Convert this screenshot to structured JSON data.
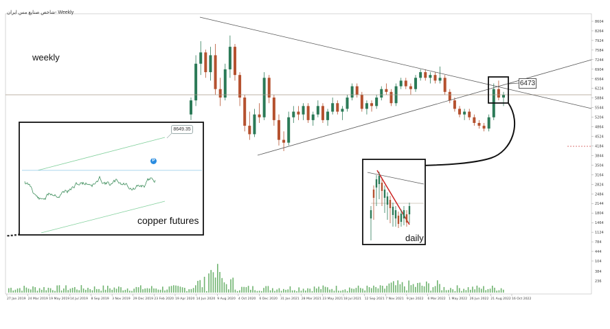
{
  "chart_window": {
    "title": "شاخص صنایع مس ایران- Weekly"
  },
  "annotations": {
    "weekly_label": "weekly",
    "copper_label": "copper futures",
    "daily_label": "daily",
    "level_callout": "6473",
    "inset_level_callout": "8649.35",
    "inset_marker": "P"
  },
  "colors": {
    "up_candle": "#2b7a57",
    "down_candle": "#b5512f",
    "volume": "#6fb36f",
    "trendline": "#555555",
    "horizontal_level": "#a89a86",
    "inset_channel": "#7fcf9a",
    "inset_level": "#8fc7e8",
    "daily_downtrend": "#cc2222",
    "dashed_level": "#cc4444"
  },
  "chart_data": {
    "type": "candlestick",
    "title": "شاخص صنایع مس ایران- Weekly",
    "y_ticks": [
      "8604",
      "8264",
      "7924",
      "7584",
      "7244",
      "6904",
      "6564",
      "6224",
      "5884",
      "5544",
      "5204",
      "4864",
      "4524",
      "4184",
      "3844",
      "3504",
      "3164",
      "2824",
      "2484",
      "2144",
      "1804",
      "1464",
      "1124",
      "784",
      "444",
      "104"
    ],
    "ylim": [
      104,
      8604
    ],
    "volume_ticks": [
      "384",
      "236"
    ],
    "x_ticks": [
      "27 Jan 2019",
      "24 Mar 2019",
      "19 May 2019",
      "14 Jul 2019",
      "8 Sep 2019",
      "3 Nov 2019",
      "29 Dec 2019",
      "23 Feb 2020",
      "19 Apr 2020",
      "14 Jun 2020",
      "9 Aug 2020",
      "4 Oct 2020",
      "6 Dec 2020",
      "31 Jan 2021",
      "28 Mar 2021",
      "23 May 2021",
      "18 Jul 2021",
      "12 Sep 2021",
      "7 Nov 2021",
      "9 Jan 2022",
      "6 Mar 2022",
      "1 May 2022",
      "26 Jun 2022",
      "21 Aug 2022",
      "16 Oct 2022"
    ],
    "horizontal_level": 6224,
    "dashed_level": 4864,
    "callout_level": 6473,
    "early_series": [
      1000,
      1010,
      1025,
      1040,
      1050,
      1068,
      1080,
      1095,
      1110,
      1120,
      1140,
      1155,
      1170,
      1185,
      1200,
      1215,
      1235,
      1250,
      1265,
      1280,
      1300,
      1320,
      1340,
      1360,
      1380,
      1400,
      1420,
      1440,
      1470,
      1500,
      1530,
      1560,
      1590,
      1620,
      1650,
      1680,
      1720,
      1760
    ],
    "candles": [
      [
        5300,
        5900,
        5100,
        5800
      ],
      [
        5800,
        7400,
        5600,
        7100
      ],
      [
        7100,
        7900,
        6700,
        7500
      ],
      [
        7500,
        7600,
        6600,
        6800
      ],
      [
        6800,
        7700,
        6500,
        7400
      ],
      [
        7400,
        7800,
        6000,
        6200
      ],
      [
        6200,
        6600,
        5600,
        5900
      ],
      [
        5900,
        7100,
        5800,
        6900
      ],
      [
        6900,
        8100,
        6600,
        7700
      ],
      [
        7700,
        7800,
        6500,
        6700
      ],
      [
        6700,
        6800,
        5600,
        5900
      ],
      [
        5900,
        6000,
        4700,
        4900
      ],
      [
        4900,
        5400,
        4400,
        4600
      ],
      [
        4600,
        5500,
        4500,
        5300
      ],
      [
        5300,
        5700,
        5000,
        5200
      ],
      [
        5200,
        6800,
        5100,
        6600
      ],
      [
        6600,
        6700,
        5700,
        5900
      ],
      [
        5900,
        6000,
        4900,
        5100
      ],
      [
        5100,
        5300,
        4200,
        4400
      ],
      [
        4400,
        4700,
        4000,
        4300
      ],
      [
        4300,
        5400,
        4200,
        5200
      ],
      [
        5200,
        5600,
        5000,
        5400
      ],
      [
        5400,
        5600,
        5100,
        5300
      ],
      [
        5300,
        5700,
        5100,
        5600
      ],
      [
        5600,
        5700,
        5000,
        5100
      ],
      [
        5100,
        5400,
        4900,
        5300
      ],
      [
        5300,
        5800,
        5200,
        5600
      ],
      [
        5600,
        5700,
        5000,
        5100
      ],
      [
        5100,
        5500,
        4900,
        5400
      ],
      [
        5400,
        5900,
        5300,
        5700
      ],
      [
        5700,
        5800,
        5300,
        5400
      ],
      [
        5400,
        5600,
        5100,
        5500
      ],
      [
        5500,
        6000,
        5400,
        5900
      ],
      [
        5900,
        6400,
        5800,
        6300
      ],
      [
        6300,
        6400,
        5900,
        6000
      ],
      [
        6000,
        6100,
        5400,
        5500
      ],
      [
        5500,
        5800,
        5300,
        5700
      ],
      [
        5700,
        5800,
        5400,
        5600
      ],
      [
        5600,
        6000,
        5500,
        5900
      ],
      [
        5900,
        6300,
        5800,
        6200
      ],
      [
        6200,
        6400,
        6000,
        6100
      ],
      [
        6100,
        6200,
        5600,
        5700
      ],
      [
        5700,
        6400,
        5600,
        6300
      ],
      [
        6300,
        6600,
        6200,
        6500
      ],
      [
        6500,
        6600,
        6200,
        6300
      ],
      [
        6300,
        6400,
        6000,
        6200
      ],
      [
        6200,
        6700,
        6100,
        6600
      ],
      [
        6600,
        6900,
        6500,
        6800
      ],
      [
        6800,
        6900,
        6500,
        6600
      ],
      [
        6600,
        6800,
        6400,
        6700
      ],
      [
        6700,
        6800,
        6400,
        6500
      ],
      [
        6500,
        7000,
        6400,
        6600
      ],
      [
        6600,
        6700,
        6000,
        6100
      ],
      [
        6100,
        6200,
        5700,
        5800
      ],
      [
        5800,
        5900,
        5400,
        5500
      ],
      [
        5500,
        5600,
        5200,
        5300
      ],
      [
        5300,
        5500,
        5100,
        5400
      ],
      [
        5400,
        5500,
        5100,
        5200
      ],
      [
        5200,
        5300,
        4900,
        5000
      ],
      [
        5000,
        5100,
        4800,
        4900
      ],
      [
        4900,
        5000,
        4700,
        4800
      ],
      [
        4800,
        5300,
        4700,
        5200
      ],
      [
        5200,
        6400,
        5100,
        6200
      ],
      [
        6200,
        6500,
        5800,
        5900
      ],
      [
        5900,
        6100,
        5600,
        6000
      ]
    ]
  }
}
